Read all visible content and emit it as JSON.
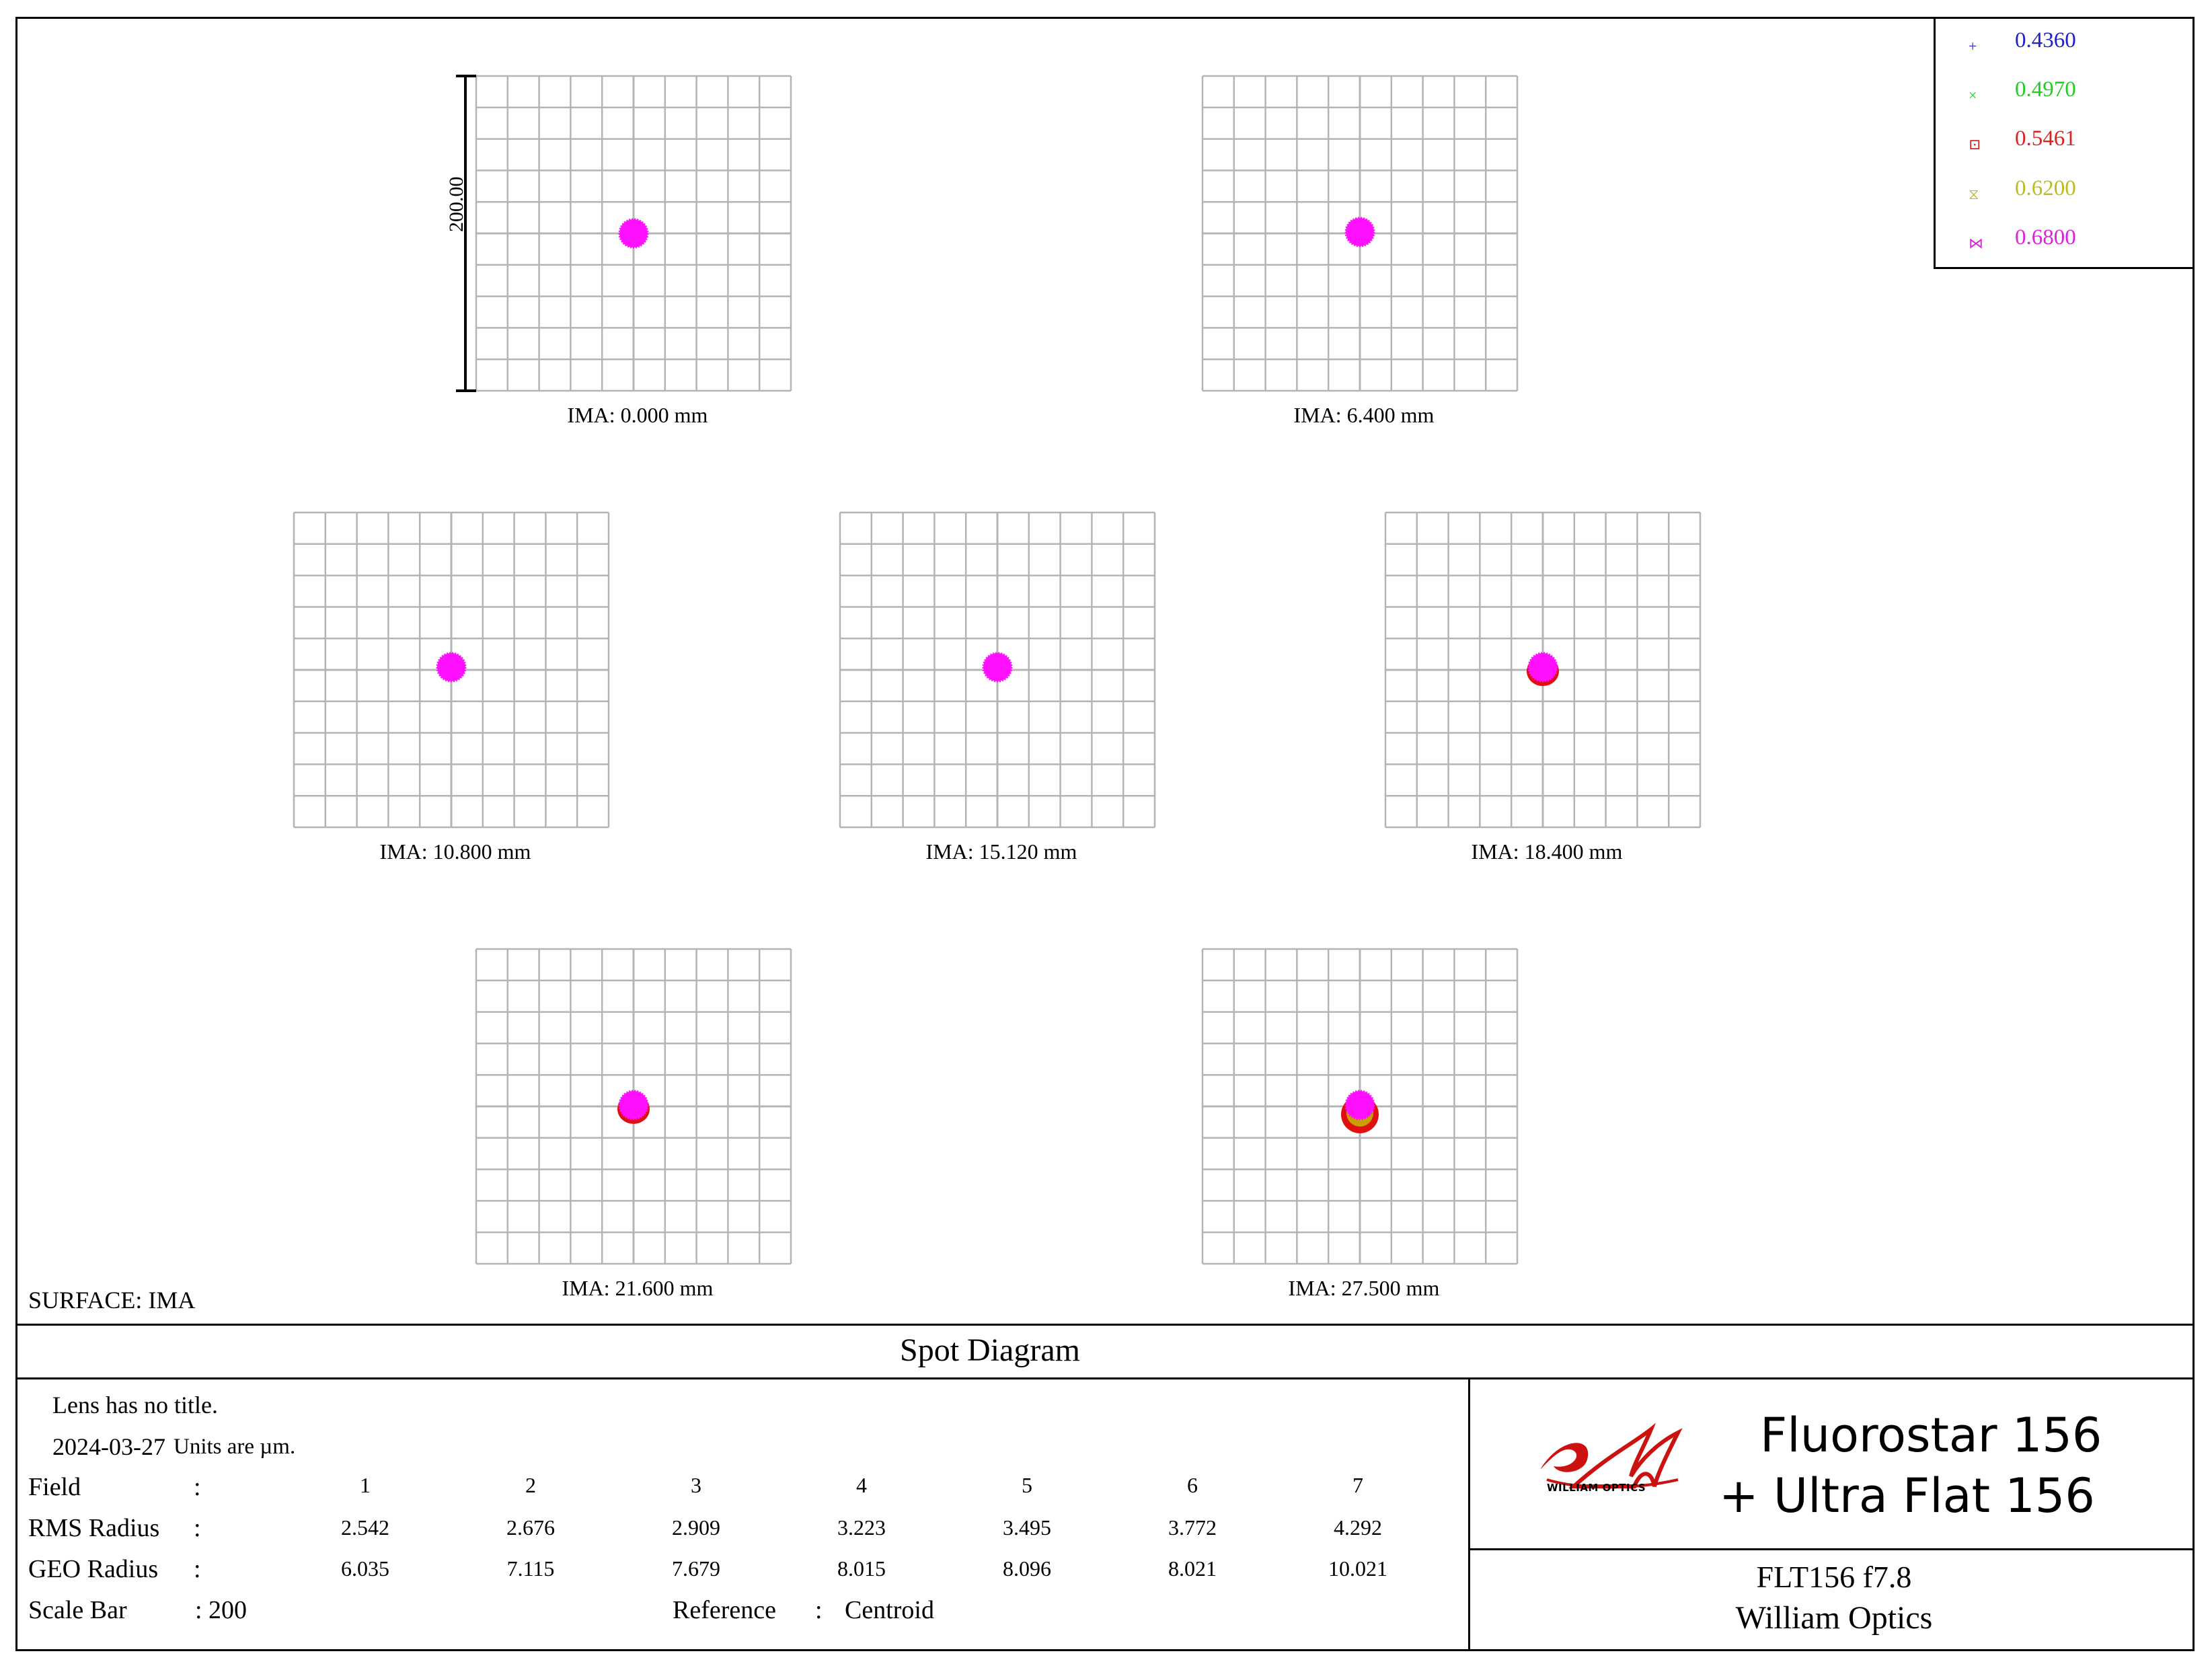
{
  "legend": [
    {
      "label": "0.4360",
      "color": "#2020cc",
      "marker": "+"
    },
    {
      "label": "0.4970",
      "color": "#22cc22",
      "marker": "×"
    },
    {
      "label": "0.5461",
      "color": "#dd2222",
      "marker": "⊡"
    },
    {
      "label": "0.6200",
      "color": "#bbbb22",
      "marker": "⧖"
    },
    {
      "label": "0.6800",
      "color": "#dd22dd",
      "marker": "⋈"
    }
  ],
  "scale_label": "200.00",
  "plots": [
    {
      "label": "IMA: 0.000 mm"
    },
    {
      "label": "IMA: 6.400 mm"
    },
    {
      "label": "IMA: 10.800 mm"
    },
    {
      "label": "IMA: 15.120 mm"
    },
    {
      "label": "IMA: 18.400 mm"
    },
    {
      "label": "IMA: 21.600 mm"
    },
    {
      "label": "IMA: 27.500 mm"
    }
  ],
  "surface": "SURFACE: IMA",
  "diagram_title": "Spot Diagram",
  "info": {
    "lens_title": "Lens has no title.",
    "date": "2024-03-27",
    "units": "Units are µm."
  },
  "table": {
    "field_label": "Field",
    "rms_label": "RMS Radius",
    "geo_label": "GEO Radius",
    "colon": ":",
    "fields": [
      "1",
      "2",
      "3",
      "4",
      "5",
      "6",
      "7"
    ],
    "rms": [
      "2.542",
      "2.676",
      "2.909",
      "3.223",
      "3.495",
      "3.772",
      "4.292"
    ],
    "geo": [
      "6.035",
      "7.115",
      "7.679",
      "8.015",
      "8.096",
      "8.021",
      "10.021"
    ],
    "scale_bar_label": "Scale Bar",
    "scale_bar_value": ": 200",
    "reference_label": "Reference",
    "reference_value": "Centroid"
  },
  "brand": {
    "logo_text": "WILLIAM OPTICS",
    "line1": "Fluorostar 156",
    "line2": "+  Ultra Flat 156",
    "model": "FLT156 f7.8",
    "company": "William Optics"
  },
  "colors": {
    "grid": "#b4b4b4",
    "spot": "#ff10ff",
    "spot_outer_red": "#e01010",
    "spot_outer_yellow": "#c8a000",
    "logo_red": "#cc1111"
  }
}
